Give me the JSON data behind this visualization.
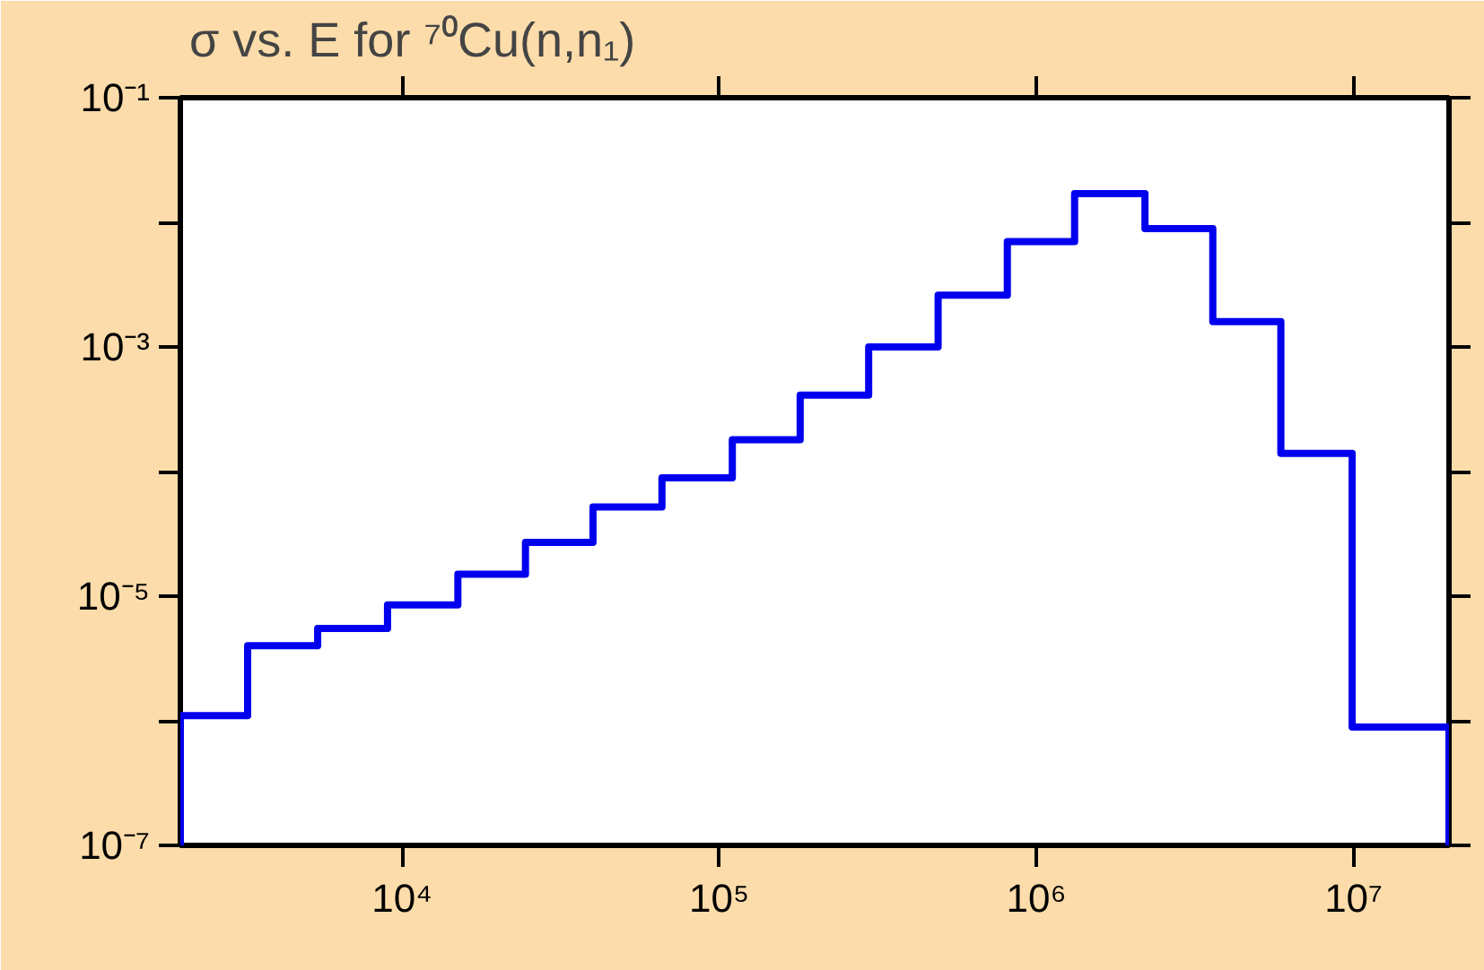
{
  "chart_data": {
    "type": "histogram",
    "title": "σ vs. E for ⁷⁰Cu(n,n₁)",
    "color": "#0000ee",
    "log": "xy",
    "grid": false,
    "bins": [
      2000,
      3260,
      5420,
      9000,
      15000,
      24500,
      40000,
      66000,
      110000,
      180000,
      296000,
      490000,
      810000,
      1320000,
      2200000,
      3600000,
      5900000,
      9900000,
      20000000
    ],
    "values": [
      1.1e-06,
      4e-06,
      5.5e-06,
      8.5e-06,
      1.5e-05,
      2.7e-05,
      5.2e-05,
      8.9e-05,
      0.00018,
      0.00041,
      0.001,
      0.0026,
      0.007,
      0.017,
      0.0089,
      0.0016,
      0.00014,
      8.9e-07
    ],
    "xlim": [
      2000,
      20000000
    ],
    "ylim": [
      1e-07,
      0.1
    ],
    "xticks": [
      {
        "value": 10000,
        "label": "10⁴"
      },
      {
        "value": 100000,
        "label": "10⁵"
      },
      {
        "value": 1000000,
        "label": "10⁶"
      },
      {
        "value": 10000000,
        "label": "10⁷"
      }
    ],
    "yticks": [
      {
        "value": 1e-07,
        "label": "10⁻⁷"
      },
      {
        "value": 1e-06,
        "label": null
      },
      {
        "value": 1e-05,
        "label": "10⁻⁵"
      },
      {
        "value": 0.0001,
        "label": null
      },
      {
        "value": 0.001,
        "label": "10⁻³"
      },
      {
        "value": 0.01,
        "label": null
      },
      {
        "value": 0.1,
        "label": "10⁻¹"
      }
    ]
  }
}
